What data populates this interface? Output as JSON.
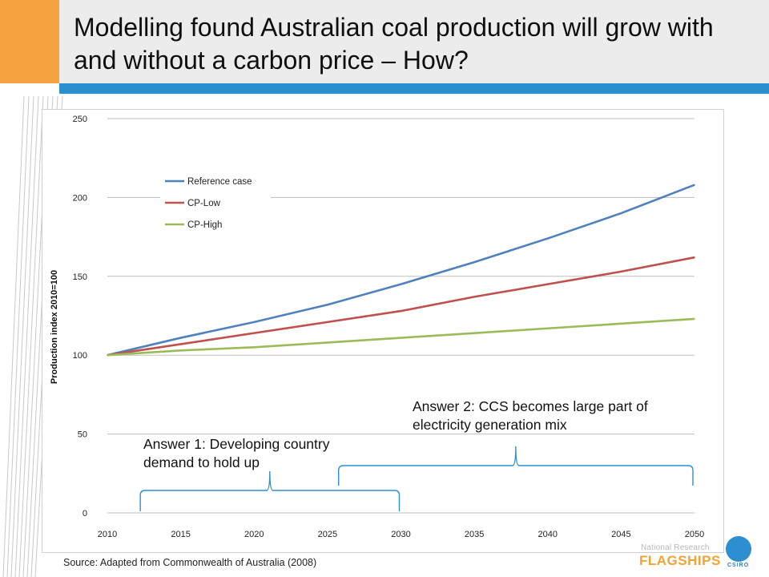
{
  "title": "Modelling found Australian coal production will grow with and without a carbon price – How?",
  "source": "Source: Adapted from Commonwealth of Australia (2008)",
  "annotations": [
    {
      "text": "Answer 1: Developing country demand to hold up",
      "range": [
        2012.3,
        2030
      ]
    },
    {
      "text": "Answer 2: CCS becomes large part of electricity generation mix",
      "range": [
        2025.7,
        2050
      ]
    }
  ],
  "logo": {
    "top": "National Research",
    "main": "FLAGSHIPS",
    "sub": "CSIRO"
  },
  "colors": {
    "accent_orange": "#f4a340",
    "accent_blue": "#2a8fd0",
    "reference": "#4f81bd",
    "cp_low": "#c0504d",
    "cp_high": "#9bbb59"
  },
  "chart_data": {
    "type": "line",
    "title": "",
    "xlabel": "",
    "ylabel": "Production index 2010=100",
    "xlim": [
      2010,
      2050
    ],
    "ylim": [
      0,
      250
    ],
    "xticks": [
      2010,
      2015,
      2020,
      2025,
      2030,
      2035,
      2040,
      2045,
      2050
    ],
    "yticks": [
      0,
      50,
      100,
      150,
      200,
      250
    ],
    "grid": "horizontal",
    "legend": "upper-left",
    "x": [
      2010,
      2015,
      2020,
      2025,
      2030,
      2035,
      2040,
      2045,
      2050
    ],
    "series": [
      {
        "name": "Reference case",
        "color": "#4f81bd",
        "values": [
          100,
          111,
          121,
          132,
          145,
          159,
          174,
          190,
          208
        ]
      },
      {
        "name": "CP-Low",
        "color": "#c0504d",
        "values": [
          100,
          107,
          114,
          121,
          128,
          137,
          145,
          153,
          162
        ]
      },
      {
        "name": "CP-High",
        "color": "#9bbb59",
        "values": [
          100,
          103,
          105,
          108,
          111,
          114,
          117,
          120,
          123
        ]
      }
    ]
  }
}
